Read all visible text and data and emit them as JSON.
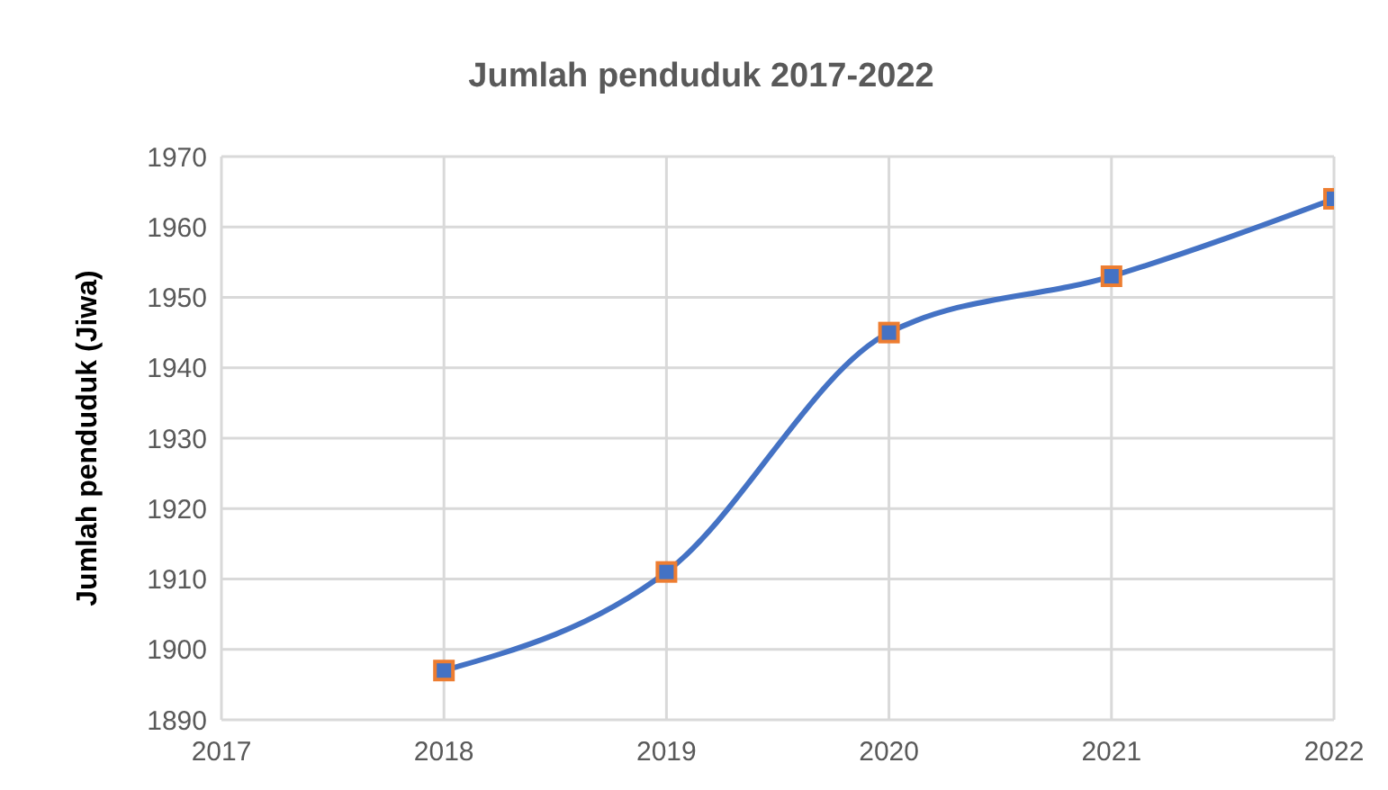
{
  "chart_data": {
    "type": "line",
    "title": "Jumlah penduduk 2017-2022",
    "ylabel": "Jumlah penduduk (Jiwa)",
    "x": [
      2018,
      2019,
      2020,
      2021,
      2022
    ],
    "series": [
      {
        "color": "#4472c4",
        "values": [
          1897,
          1911,
          1945,
          1953,
          1964
        ]
      }
    ],
    "xlim": [
      2017,
      2022
    ],
    "xticks": [
      2017,
      2018,
      2019,
      2020,
      2021,
      2022
    ],
    "ylim": [
      1890,
      1970
    ],
    "yticks": [
      1890,
      1900,
      1910,
      1920,
      1930,
      1940,
      1950,
      1960,
      1970
    ],
    "grid": true,
    "marker": "square",
    "legend": false
  }
}
